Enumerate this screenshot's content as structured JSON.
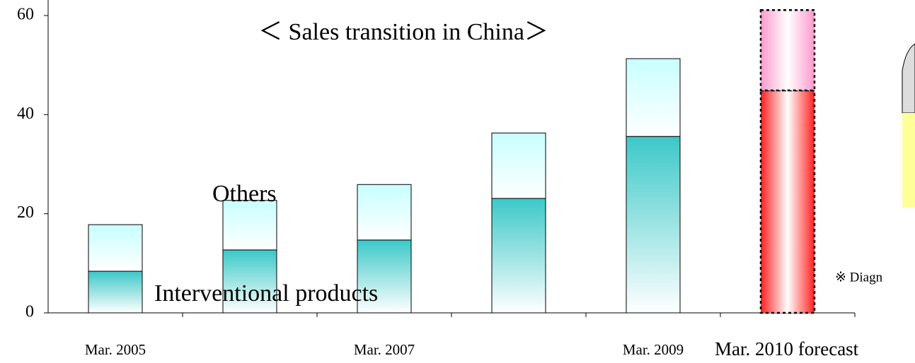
{
  "chart_data": {
    "type": "stacked_bar",
    "title": "＜ Sales transition in China＞",
    "categories": [
      "Mar. 2005",
      null,
      "Mar. 2007",
      null,
      "Mar. 2009",
      "Mar. 2010 forecast"
    ],
    "series": [
      {
        "name": "Interventional products",
        "color": "#3cc8c8",
        "forecast_color": "#ff2020",
        "values": [
          8.4,
          12.7,
          14.7,
          23.1,
          35.6,
          44.9
        ]
      },
      {
        "name": "Others",
        "color": "#c8ffff",
        "forecast_color": "#ff99cc",
        "values": [
          9.4,
          10.0,
          11.2,
          13.2,
          15.7,
          16.2
        ]
      }
    ],
    "forecast_index": 5,
    "ylim": [
      0,
      60
    ],
    "yticks": [
      0,
      20,
      40,
      60
    ],
    "note": "※ Diagn"
  }
}
